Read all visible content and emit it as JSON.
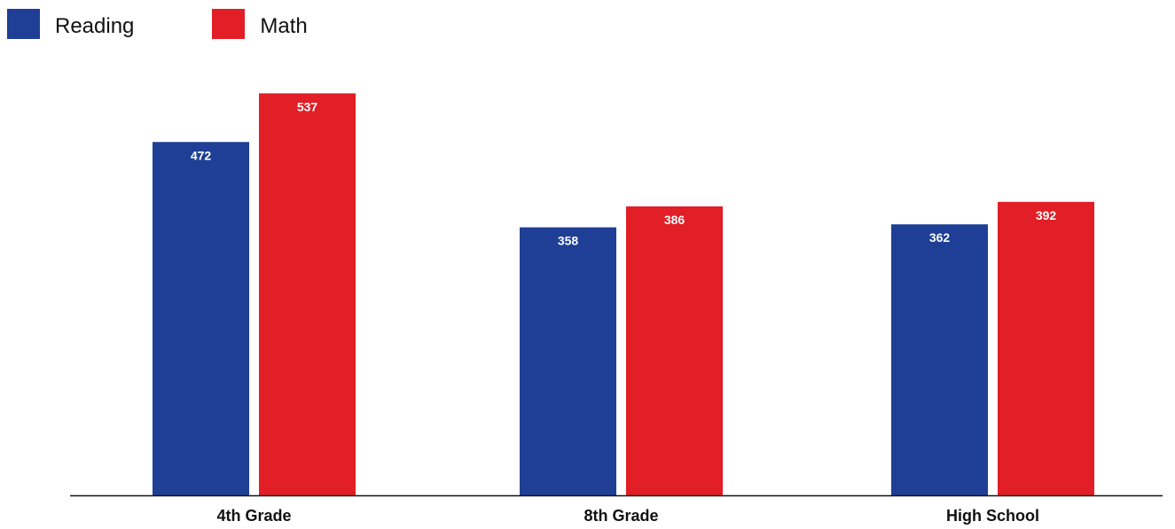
{
  "chart_data": {
    "type": "bar",
    "title": "",
    "xlabel": "",
    "ylabel": "",
    "categories": [
      "4th Grade",
      "8th Grade",
      "High School"
    ],
    "series": [
      {
        "name": "Reading",
        "color": "#1f3f96",
        "values": [
          472,
          358,
          362
        ]
      },
      {
        "name": "Math",
        "color": "#e21e26",
        "values": [
          537,
          386,
          392
        ]
      }
    ],
    "ylim": [
      0,
      600
    ],
    "grid": false,
    "legend_position": "top-left",
    "data_label_color": "#ffffff",
    "axis_color": "#111111"
  }
}
